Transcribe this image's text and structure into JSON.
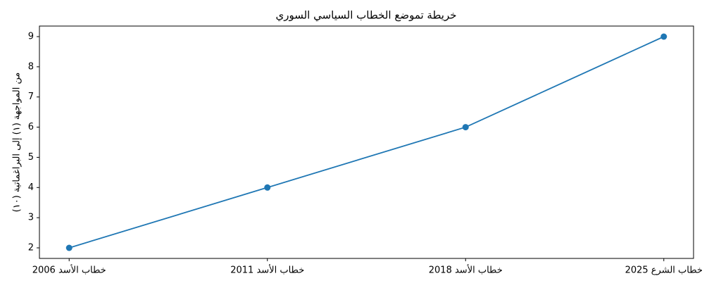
{
  "chart_data": {
    "type": "line",
    "title": "خريطة تموضع الخطاب السياسي السوري",
    "y_label": "من المواجهة (١) إلى البراغماتية (١٠)",
    "categories": [
      "خطاب الأسد 2006",
      "خطاب الأسد 2011",
      "خطاب الأسد 2018",
      "خطاب الشرع 2025"
    ],
    "values": [
      2,
      4,
      6,
      9
    ],
    "color": "#1f77b4",
    "ylim": [
      1.65,
      9.35
    ],
    "yticks": [
      2,
      3,
      4,
      5,
      6,
      7,
      8,
      9
    ],
    "grid": false
  }
}
